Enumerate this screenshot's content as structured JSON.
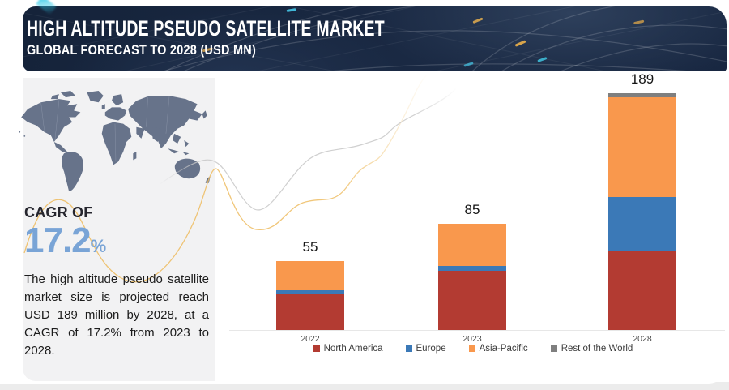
{
  "header": {
    "title": "HIGH ALTITUDE PSEUDO SATELLITE MARKET",
    "subtitle": "GLOBAL FORECAST TO 2028 (USD MN)"
  },
  "sidebar": {
    "map_icon": "world-map",
    "cagr_label": "CAGR OF",
    "cagr_value": "17.2",
    "cagr_unit": "%",
    "cagr_color": "#79a4d6",
    "description": "The high altitude pseudo satellite market size is projected reach USD 189 million by 2028, at a CAGR of 17.2% from 2023 to 2028."
  },
  "chart_data": {
    "type": "bar",
    "stacked": true,
    "unit": "USD MN",
    "categories": [
      "2022",
      "2023",
      "2028"
    ],
    "series": [
      {
        "name": "North America",
        "color": "#b33b32",
        "values": [
          29,
          47,
          63
        ]
      },
      {
        "name": "Europe",
        "color": "#3b79b7",
        "values": [
          3,
          4,
          43
        ]
      },
      {
        "name": "Asia-Pacific",
        "color": "#f9984d",
        "values": [
          23,
          34,
          80
        ]
      },
      {
        "name": "Rest of the World",
        "color": "#7f7f7f",
        "values": [
          0,
          0,
          3
        ]
      }
    ],
    "totals": [
      55,
      85,
      189
    ],
    "total_labels": [
      "55",
      "85",
      "189"
    ],
    "legend_position": "bottom",
    "value_axis_visible": false,
    "grid": false
  }
}
